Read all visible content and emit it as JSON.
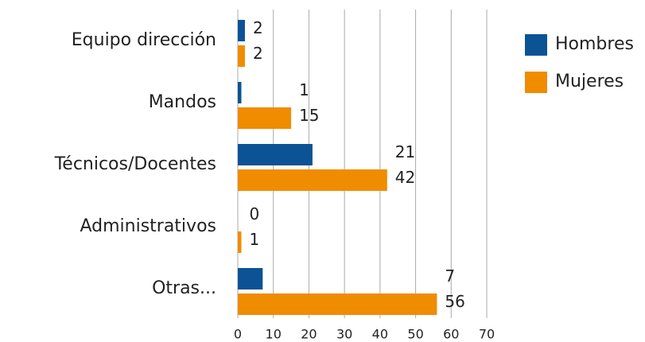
{
  "chart_data": {
    "type": "bar",
    "orientation": "horizontal",
    "categories": [
      "Equipo dirección",
      "Mandos",
      "Técnicos/Docentes",
      "Administrativos",
      "Otras..."
    ],
    "series": [
      {
        "name": "Hombres",
        "color": "#0b5394",
        "values": [
          2,
          1,
          21,
          0,
          7
        ]
      },
      {
        "name": "Mujeres",
        "color": "#f08c00",
        "values": [
          2,
          15,
          42,
          1,
          56
        ]
      }
    ],
    "xlim": [
      0,
      70
    ],
    "xticks": [
      0,
      10,
      20,
      30,
      40,
      50,
      60,
      70
    ],
    "grid": true,
    "legend": "top-right"
  }
}
